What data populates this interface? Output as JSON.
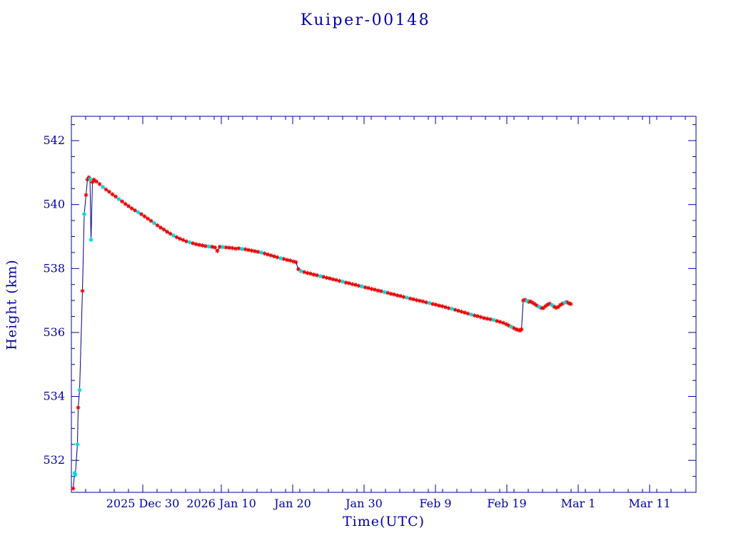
{
  "chart_data": {
    "type": "line",
    "title": "Kuiper-00148",
    "xlabel": "Time(UTC)",
    "ylabel": "Height (km)",
    "x_unit": "days from left edge of plot (left edge = 2025 Dec 20)",
    "xlim": [
      0,
      87.5
    ],
    "ylim": [
      531.0,
      542.76
    ],
    "x_ticks": [
      {
        "t": 10,
        "label": "2025 Dec 30"
      },
      {
        "t": 21,
        "label": "2026 Jan 10"
      },
      {
        "t": 31,
        "label": "Jan 20"
      },
      {
        "t": 41,
        "label": "Jan 30"
      },
      {
        "t": 51,
        "label": "Feb 9"
      },
      {
        "t": 61,
        "label": "Feb 19"
      },
      {
        "t": 71,
        "label": "Mar 1"
      },
      {
        "t": 81,
        "label": "Mar 11"
      }
    ],
    "y_ticks": [
      532,
      534,
      536,
      538,
      540,
      542
    ],
    "x_minor_step": 2,
    "y_minor_step": 0.5,
    "grid": false,
    "legend": "none",
    "colors": {
      "axis": "#0000a8",
      "line": "#000080",
      "marker_red": "#e80000",
      "marker_cyan": "#00d8d8"
    },
    "marker_styles": {
      "r": "red asterisk",
      "c": "cyan asterisk"
    },
    "points": [
      [
        0.25,
        531.12,
        "r"
      ],
      [
        0.45,
        531.6,
        "c"
      ],
      [
        0.55,
        531.55,
        "c"
      ],
      [
        0.85,
        532.5,
        "c"
      ],
      [
        0.95,
        533.65,
        "r"
      ],
      [
        1.15,
        534.2,
        "c"
      ],
      [
        1.55,
        537.3,
        "r"
      ],
      [
        1.8,
        539.7,
        "c"
      ],
      [
        2.05,
        540.3,
        "r"
      ],
      [
        2.25,
        540.78,
        "r"
      ],
      [
        2.45,
        540.85,
        "r"
      ],
      [
        2.6,
        540.8,
        "c"
      ],
      [
        2.75,
        538.9,
        "c"
      ],
      [
        2.95,
        540.7,
        "r"
      ],
      [
        3.15,
        540.78,
        "r"
      ],
      [
        3.5,
        540.72,
        "r"
      ],
      [
        3.95,
        540.64,
        "r"
      ],
      [
        4.4,
        540.55,
        "c"
      ],
      [
        4.85,
        540.47,
        "r"
      ],
      [
        5.3,
        540.4,
        "r"
      ],
      [
        5.75,
        540.32,
        "r"
      ],
      [
        6.2,
        540.25,
        "r"
      ],
      [
        6.65,
        540.17,
        "c"
      ],
      [
        7.1,
        540.1,
        "r"
      ],
      [
        7.55,
        540.02,
        "r"
      ],
      [
        8.0,
        539.95,
        "r"
      ],
      [
        8.45,
        539.88,
        "r"
      ],
      [
        8.9,
        539.82,
        "r"
      ],
      [
        9.35,
        539.76,
        "c"
      ],
      [
        9.8,
        539.7,
        "r"
      ],
      [
        10.25,
        539.63,
        "r"
      ],
      [
        10.7,
        539.56,
        "r"
      ],
      [
        11.15,
        539.49,
        "r"
      ],
      [
        11.6,
        539.42,
        "c"
      ],
      [
        12.05,
        539.35,
        "r"
      ],
      [
        12.5,
        539.28,
        "r"
      ],
      [
        12.95,
        539.22,
        "r"
      ],
      [
        13.4,
        539.15,
        "r"
      ],
      [
        13.85,
        539.09,
        "r"
      ],
      [
        14.3,
        539.03,
        "c"
      ],
      [
        14.75,
        538.98,
        "r"
      ],
      [
        15.2,
        538.93,
        "r"
      ],
      [
        15.65,
        538.89,
        "r"
      ],
      [
        16.1,
        538.85,
        "r"
      ],
      [
        16.55,
        538.82,
        "c"
      ],
      [
        17.0,
        538.79,
        "r"
      ],
      [
        17.45,
        538.76,
        "r"
      ],
      [
        17.9,
        538.74,
        "r"
      ],
      [
        18.35,
        538.72,
        "r"
      ],
      [
        18.8,
        538.7,
        "r"
      ],
      [
        19.25,
        538.69,
        "c"
      ],
      [
        19.7,
        538.68,
        "r"
      ],
      [
        20.1,
        538.66,
        "r"
      ],
      [
        20.45,
        538.55,
        "r"
      ],
      [
        20.8,
        538.68,
        "r"
      ],
      [
        21.2,
        538.67,
        "c"
      ],
      [
        21.65,
        538.66,
        "r"
      ],
      [
        22.1,
        538.65,
        "r"
      ],
      [
        22.55,
        538.64,
        "r"
      ],
      [
        23.0,
        538.62,
        "r"
      ],
      [
        23.45,
        538.63,
        "r"
      ],
      [
        23.9,
        538.61,
        "c"
      ],
      [
        24.35,
        538.6,
        "r"
      ],
      [
        24.8,
        538.58,
        "r"
      ],
      [
        25.25,
        538.56,
        "r"
      ],
      [
        25.7,
        538.54,
        "r"
      ],
      [
        26.15,
        538.52,
        "r"
      ],
      [
        26.6,
        538.5,
        "c"
      ],
      [
        27.05,
        538.47,
        "r"
      ],
      [
        27.5,
        538.44,
        "r"
      ],
      [
        27.95,
        538.41,
        "r"
      ],
      [
        28.4,
        538.38,
        "r"
      ],
      [
        28.85,
        538.35,
        "r"
      ],
      [
        29.3,
        538.32,
        "c"
      ],
      [
        29.75,
        538.3,
        "r"
      ],
      [
        30.2,
        538.27,
        "r"
      ],
      [
        30.65,
        538.25,
        "r"
      ],
      [
        31.1,
        538.22,
        "r"
      ],
      [
        31.45,
        538.2,
        "r"
      ],
      [
        31.8,
        537.98,
        "r"
      ],
      [
        32.15,
        537.92,
        "c"
      ],
      [
        32.6,
        537.89,
        "r"
      ],
      [
        33.05,
        537.86,
        "r"
      ],
      [
        33.5,
        537.84,
        "r"
      ],
      [
        33.95,
        537.81,
        "r"
      ],
      [
        34.4,
        537.79,
        "r"
      ],
      [
        34.85,
        537.76,
        "c"
      ],
      [
        35.3,
        537.74,
        "r"
      ],
      [
        35.75,
        537.71,
        "r"
      ],
      [
        36.2,
        537.69,
        "r"
      ],
      [
        36.65,
        537.66,
        "r"
      ],
      [
        37.1,
        537.64,
        "r"
      ],
      [
        37.55,
        537.61,
        "r"
      ],
      [
        38.0,
        537.59,
        "c"
      ],
      [
        38.45,
        537.56,
        "r"
      ],
      [
        38.9,
        537.54,
        "r"
      ],
      [
        39.35,
        537.51,
        "r"
      ],
      [
        39.8,
        537.49,
        "r"
      ],
      [
        40.25,
        537.46,
        "r"
      ],
      [
        40.7,
        537.44,
        "c"
      ],
      [
        41.15,
        537.41,
        "r"
      ],
      [
        41.6,
        537.39,
        "r"
      ],
      [
        42.05,
        537.36,
        "r"
      ],
      [
        42.5,
        537.34,
        "r"
      ],
      [
        42.95,
        537.31,
        "r"
      ],
      [
        43.4,
        537.29,
        "r"
      ],
      [
        43.85,
        537.26,
        "c"
      ],
      [
        44.3,
        537.24,
        "r"
      ],
      [
        44.75,
        537.21,
        "r"
      ],
      [
        45.2,
        537.19,
        "r"
      ],
      [
        45.65,
        537.16,
        "r"
      ],
      [
        46.1,
        537.14,
        "r"
      ],
      [
        46.55,
        537.11,
        "r"
      ],
      [
        47.0,
        537.09,
        "c"
      ],
      [
        47.45,
        537.06,
        "r"
      ],
      [
        47.9,
        537.04,
        "r"
      ],
      [
        48.35,
        537.01,
        "r"
      ],
      [
        48.8,
        536.99,
        "r"
      ],
      [
        49.25,
        536.97,
        "r"
      ],
      [
        49.7,
        536.94,
        "r"
      ],
      [
        50.15,
        536.92,
        "c"
      ],
      [
        50.6,
        536.89,
        "r"
      ],
      [
        51.05,
        536.87,
        "r"
      ],
      [
        51.5,
        536.84,
        "r"
      ],
      [
        51.95,
        536.82,
        "r"
      ],
      [
        52.4,
        536.79,
        "r"
      ],
      [
        52.85,
        536.76,
        "r"
      ],
      [
        53.3,
        536.74,
        "c"
      ],
      [
        53.75,
        536.71,
        "r"
      ],
      [
        54.2,
        536.68,
        "r"
      ],
      [
        54.65,
        536.65,
        "r"
      ],
      [
        55.1,
        536.62,
        "r"
      ],
      [
        55.55,
        536.59,
        "r"
      ],
      [
        56.0,
        536.56,
        "c"
      ],
      [
        56.45,
        536.53,
        "r"
      ],
      [
        56.9,
        536.51,
        "r"
      ],
      [
        57.35,
        536.48,
        "r"
      ],
      [
        57.8,
        536.45,
        "r"
      ],
      [
        58.25,
        536.43,
        "r"
      ],
      [
        58.7,
        536.41,
        "r"
      ],
      [
        59.15,
        536.39,
        "c"
      ],
      [
        59.6,
        536.36,
        "r"
      ],
      [
        60.05,
        536.33,
        "r"
      ],
      [
        60.5,
        536.3,
        "r"
      ],
      [
        60.9,
        536.26,
        "r"
      ],
      [
        61.25,
        536.22,
        "r"
      ],
      [
        61.6,
        536.18,
        "c"
      ],
      [
        61.95,
        536.14,
        "r"
      ],
      [
        62.3,
        536.1,
        "r"
      ],
      [
        62.6,
        536.08,
        "r"
      ],
      [
        62.85,
        536.06,
        "r"
      ],
      [
        63.05,
        536.1,
        "r"
      ],
      [
        63.3,
        537.0,
        "r"
      ],
      [
        63.55,
        537.02,
        "r"
      ],
      [
        63.8,
        536.99,
        "c"
      ],
      [
        64.05,
        536.96,
        "r"
      ],
      [
        64.3,
        536.97,
        "r"
      ],
      [
        64.6,
        536.93,
        "r"
      ],
      [
        64.9,
        536.89,
        "r"
      ],
      [
        65.2,
        536.84,
        "r"
      ],
      [
        65.5,
        536.8,
        "c"
      ],
      [
        65.8,
        536.77,
        "r"
      ],
      [
        66.1,
        536.76,
        "r"
      ],
      [
        66.4,
        536.82,
        "r"
      ],
      [
        66.7,
        536.87,
        "r"
      ],
      [
        67.0,
        536.9,
        "r"
      ],
      [
        67.3,
        536.86,
        "c"
      ],
      [
        67.6,
        536.81,
        "r"
      ],
      [
        67.9,
        536.77,
        "r"
      ],
      [
        68.2,
        536.8,
        "r"
      ],
      [
        68.5,
        536.86,
        "r"
      ],
      [
        68.8,
        536.9,
        "r"
      ],
      [
        69.1,
        536.93,
        "c"
      ],
      [
        69.4,
        536.95,
        "r"
      ],
      [
        69.7,
        536.91,
        "r"
      ],
      [
        69.95,
        536.89,
        "r"
      ]
    ]
  }
}
